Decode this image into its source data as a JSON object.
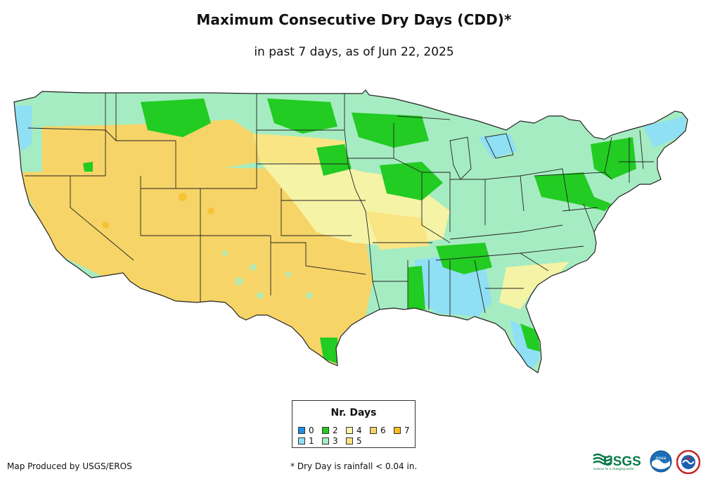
{
  "title": "Maximum Consecutive Dry Days (CDD)*",
  "subtitle": "in past 7 days, as of Jun 22, 2025",
  "legend": {
    "title": "Nr. Days",
    "items": [
      {
        "label": "0",
        "color": "#1e90e6"
      },
      {
        "label": "1",
        "color": "#8fdff5"
      },
      {
        "label": "2",
        "color": "#22cc22"
      },
      {
        "label": "3",
        "color": "#a6ecc2"
      },
      {
        "label": "4",
        "color": "#f5f3a6"
      },
      {
        "label": "5",
        "color": "#f9e583"
      },
      {
        "label": "6",
        "color": "#f7d467"
      },
      {
        "label": "7",
        "color": "#f5bd1f"
      }
    ]
  },
  "footer": {
    "credit": "Map Produced by USGS/EROS",
    "note": "* Dry Day is rainfall < 0.04 in."
  },
  "logos": {
    "usgs_text": "USGS",
    "usgs_tagline": "science for a changing world",
    "noaa_text": "noaa"
  }
}
